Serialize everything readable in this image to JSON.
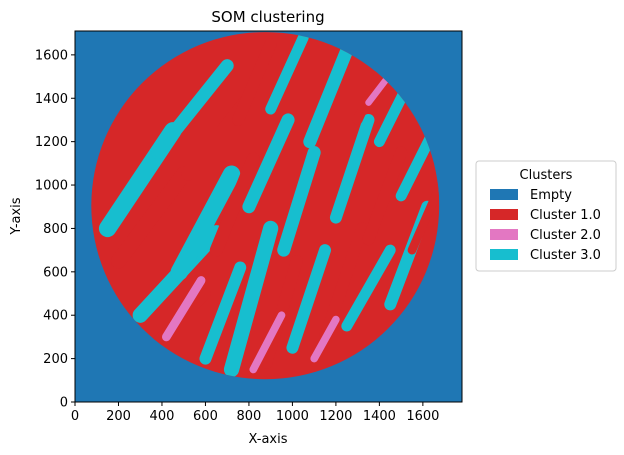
{
  "chart_data": {
    "type": "heatmap",
    "title": "SOM clustering",
    "xlabel": "X-axis",
    "ylabel": "Y-axis",
    "xlim": [
      0,
      1780
    ],
    "ylim": [
      0,
      1710
    ],
    "xticks": [
      0,
      200,
      400,
      600,
      800,
      1000,
      1200,
      1400,
      1600
    ],
    "yticks": [
      0,
      200,
      400,
      600,
      800,
      1000,
      1200,
      1400,
      1600
    ],
    "grid": false,
    "legend": {
      "title": "Clusters",
      "placement": "center-right-outside",
      "entries": [
        {
          "label": "Empty",
          "color": "#1f77b4"
        },
        {
          "label": "Cluster 1.0",
          "color": "#d62728"
        },
        {
          "label": "Cluster 2.0",
          "color": "#e377c2"
        },
        {
          "label": "Cluster 3.0",
          "color": "#17becf"
        }
      ]
    },
    "circle_region": {
      "center_x": 875,
      "center_y": 905,
      "radius": 800
    },
    "stripes": [
      {
        "x1": 150,
        "y1": 800,
        "x2": 450,
        "y2": 1250,
        "width": 80,
        "cluster": 3
      },
      {
        "x1": 200,
        "y1": 650,
        "x2": 500,
        "y2": 1050,
        "width": 70,
        "cluster": 1
      },
      {
        "x1": 380,
        "y1": 1150,
        "x2": 700,
        "y2": 1550,
        "width": 60,
        "cluster": 3
      },
      {
        "x1": 300,
        "y1": 400,
        "x2": 650,
        "y2": 780,
        "width": 70,
        "cluster": 3
      },
      {
        "x1": 480,
        "y1": 600,
        "x2": 720,
        "y2": 1050,
        "width": 80,
        "cluster": 3
      },
      {
        "x1": 520,
        "y1": 1050,
        "x2": 780,
        "y2": 1380,
        "width": 60,
        "cluster": 1
      },
      {
        "x1": 600,
        "y1": 200,
        "x2": 760,
        "y2": 620,
        "width": 55,
        "cluster": 3
      },
      {
        "x1": 650,
        "y1": 700,
        "x2": 820,
        "y2": 1120,
        "width": 60,
        "cluster": 1
      },
      {
        "x1": 720,
        "y1": 150,
        "x2": 900,
        "y2": 800,
        "width": 70,
        "cluster": 3
      },
      {
        "x1": 800,
        "y1": 900,
        "x2": 980,
        "y2": 1300,
        "width": 60,
        "cluster": 3
      },
      {
        "x1": 880,
        "y1": 180,
        "x2": 1020,
        "y2": 650,
        "width": 55,
        "cluster": 1
      },
      {
        "x1": 960,
        "y1": 700,
        "x2": 1100,
        "y2": 1150,
        "width": 60,
        "cluster": 3
      },
      {
        "x1": 1000,
        "y1": 250,
        "x2": 1150,
        "y2": 700,
        "width": 55,
        "cluster": 3
      },
      {
        "x1": 1080,
        "y1": 1200,
        "x2": 1250,
        "y2": 1620,
        "width": 60,
        "cluster": 3
      },
      {
        "x1": 1150,
        "y1": 300,
        "x2": 1320,
        "y2": 800,
        "width": 55,
        "cluster": 1
      },
      {
        "x1": 1200,
        "y1": 850,
        "x2": 1350,
        "y2": 1300,
        "width": 55,
        "cluster": 3
      },
      {
        "x1": 1250,
        "y1": 350,
        "x2": 1450,
        "y2": 700,
        "width": 50,
        "cluster": 3
      },
      {
        "x1": 1350,
        "y1": 750,
        "x2": 1500,
        "y2": 1150,
        "width": 55,
        "cluster": 1
      },
      {
        "x1": 1400,
        "y1": 1200,
        "x2": 1550,
        "y2": 1500,
        "width": 50,
        "cluster": 3
      },
      {
        "x1": 1450,
        "y1": 450,
        "x2": 1620,
        "y2": 900,
        "width": 55,
        "cluster": 3
      },
      {
        "x1": 1500,
        "y1": 950,
        "x2": 1650,
        "y2": 1250,
        "width": 50,
        "cluster": 3
      },
      {
        "x1": 350,
        "y1": 250,
        "x2": 600,
        "y2": 500,
        "width": 50,
        "cluster": 1
      },
      {
        "x1": 750,
        "y1": 1300,
        "x2": 900,
        "y2": 1650,
        "width": 55,
        "cluster": 1
      },
      {
        "x1": 900,
        "y1": 1350,
        "x2": 1050,
        "y2": 1680,
        "width": 50,
        "cluster": 3
      },
      {
        "x1": 1300,
        "y1": 1300,
        "x2": 1450,
        "y2": 1620,
        "width": 45,
        "cluster": 1
      },
      {
        "x1": 1550,
        "y1": 700,
        "x2": 1680,
        "y2": 1000,
        "width": 40,
        "cluster": 1
      },
      {
        "x1": 420,
        "y1": 300,
        "x2": 580,
        "y2": 560,
        "width": 40,
        "cluster": 2
      },
      {
        "x1": 820,
        "y1": 150,
        "x2": 950,
        "y2": 400,
        "width": 35,
        "cluster": 2
      },
      {
        "x1": 1100,
        "y1": 200,
        "x2": 1200,
        "y2": 380,
        "width": 35,
        "cluster": 2
      },
      {
        "x1": 1350,
        "y1": 1380,
        "x2": 1480,
        "y2": 1550,
        "width": 30,
        "cluster": 2
      }
    ]
  }
}
